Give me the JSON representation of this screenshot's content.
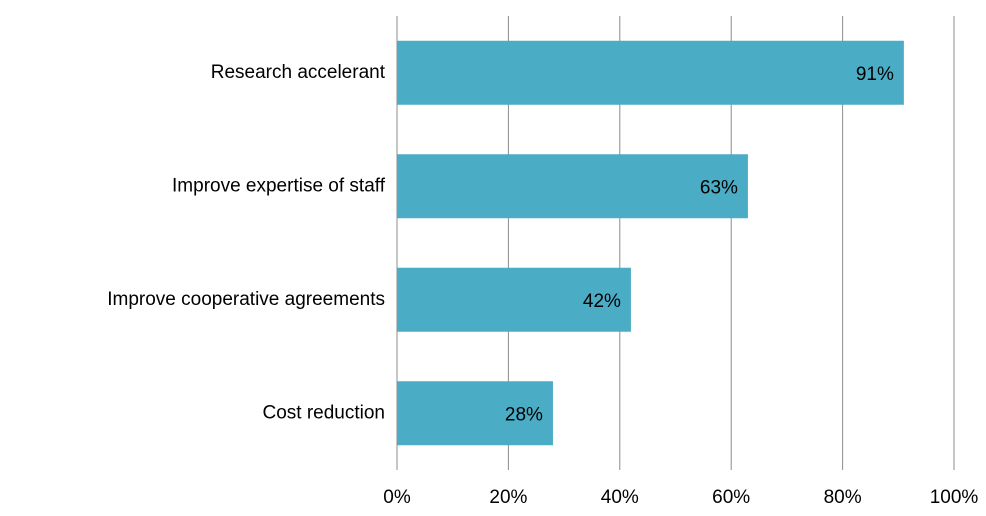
{
  "chart_data": {
    "type": "bar",
    "orientation": "horizontal",
    "categories": [
      "Research accelerant",
      "Improve expertise of staff",
      "Improve cooperative agreements",
      "Cost reduction"
    ],
    "values": [
      91,
      63,
      42,
      28
    ],
    "value_labels": [
      "91%",
      "63%",
      "42%",
      "28%"
    ],
    "color": "#4bacc6",
    "xlim": [
      0,
      100
    ],
    "xticks": [
      {
        "value": 0,
        "label": "0%"
      },
      {
        "value": 20,
        "label": "20%"
      },
      {
        "value": 40,
        "label": "40%"
      },
      {
        "value": 60,
        "label": "60%"
      },
      {
        "value": 80,
        "label": "80%"
      },
      {
        "value": 100,
        "label": "100%"
      }
    ],
    "grid": true
  }
}
